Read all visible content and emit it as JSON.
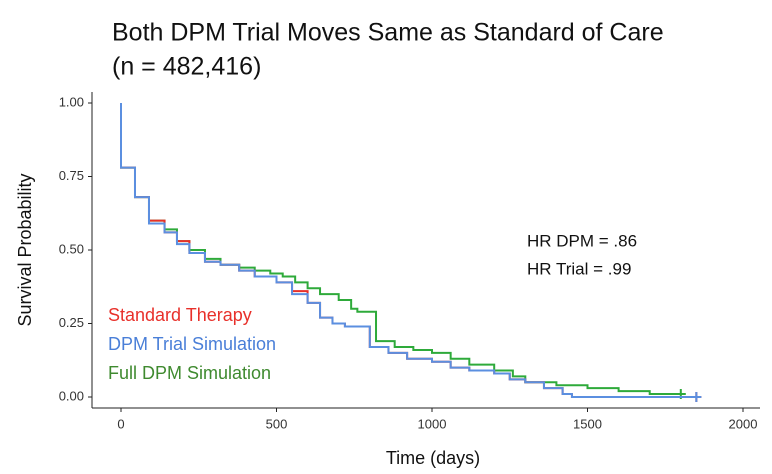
{
  "chart_data": {
    "type": "step",
    "title": [
      "Both DPM Trial Moves Same as Standard of Care",
      "(n = 482,416)"
    ],
    "x_label": "Time (days)",
    "y_label": "Survival Probability",
    "annotations": [
      "HR DPM = .86",
      "HR Trial = .99"
    ],
    "xlim": [
      0,
      2000
    ],
    "xticks": [
      0,
      500,
      1000,
      1500,
      2000
    ],
    "ylim": [
      0,
      1
    ],
    "yticks": [
      {
        "value": 0,
        "label": "0.00"
      },
      {
        "value": 0.25,
        "label": "0.25"
      },
      {
        "value": 0.5,
        "label": "0.50"
      },
      {
        "value": 0.75,
        "label": "0.75"
      },
      {
        "value": 1,
        "label": "1.00"
      }
    ],
    "series": [
      {
        "name": "Standard Therapy",
        "color": "#e8302a",
        "x": [
          0,
          0,
          45,
          90,
          140,
          180,
          220,
          270,
          320,
          380,
          430,
          500,
          550,
          600,
          640,
          680,
          720,
          800,
          860,
          920,
          1000,
          1060,
          1120,
          1200,
          1250,
          1300,
          1360,
          1420,
          1450,
          1850
        ],
        "values": [
          1,
          0.78,
          0.68,
          0.6,
          0.56,
          0.53,
          0.49,
          0.46,
          0.45,
          0.43,
          0.41,
          0.39,
          0.36,
          0.32,
          0.27,
          0.25,
          0.24,
          0.17,
          0.15,
          0.13,
          0.12,
          0.1,
          0.09,
          0.08,
          0.06,
          0.05,
          0.03,
          0.01,
          0,
          0
        ]
      },
      {
        "name": "DPM Trial Simulation",
        "color": "#5b8fe0",
        "x": [
          0,
          0,
          45,
          90,
          140,
          180,
          220,
          270,
          320,
          380,
          430,
          500,
          550,
          600,
          640,
          680,
          720,
          800,
          860,
          920,
          1000,
          1060,
          1120,
          1200,
          1250,
          1300,
          1360,
          1420,
          1450,
          1850
        ],
        "values": [
          1,
          0.78,
          0.68,
          0.59,
          0.56,
          0.52,
          0.49,
          0.46,
          0.45,
          0.43,
          0.41,
          0.39,
          0.35,
          0.32,
          0.27,
          0.25,
          0.24,
          0.17,
          0.15,
          0.13,
          0.12,
          0.1,
          0.09,
          0.08,
          0.06,
          0.05,
          0.03,
          0.01,
          0,
          0
        ]
      },
      {
        "name": "Full DPM Simulation",
        "color": "#2eaa3a",
        "x": [
          0,
          0,
          45,
          90,
          140,
          180,
          220,
          270,
          320,
          380,
          430,
          480,
          520,
          560,
          600,
          640,
          700,
          740,
          760,
          820,
          880,
          940,
          1000,
          1060,
          1120,
          1200,
          1260,
          1300,
          1400,
          1500,
          1600,
          1700,
          1800
        ],
        "values": [
          1,
          0.78,
          0.68,
          0.6,
          0.57,
          0.53,
          0.5,
          0.47,
          0.45,
          0.44,
          0.43,
          0.42,
          0.41,
          0.39,
          0.37,
          0.35,
          0.33,
          0.3,
          0.29,
          0.19,
          0.17,
          0.16,
          0.15,
          0.13,
          0.11,
          0.09,
          0.07,
          0.05,
          0.04,
          0.03,
          0.02,
          0.01,
          0.01
        ]
      }
    ],
    "legend_colors": [
      "#e8302a",
      "#4a7fd8",
      "#3f8a2f"
    ]
  }
}
